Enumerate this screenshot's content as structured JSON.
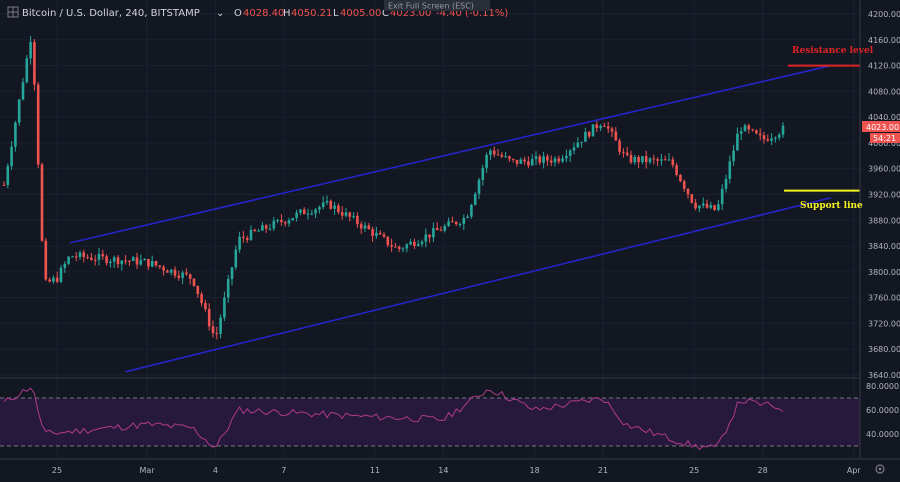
{
  "header": {
    "symbol": "Bitcoin / U.S. Dollar, 240, BITSTAMP",
    "open_label": "O",
    "open": "4028.40",
    "high_label": "H",
    "high": "4050.21",
    "low_label": "L",
    "low": "4005.00",
    "close_label": "C",
    "close": "4023.00",
    "change": "-4.40 (-0.11%)",
    "fullscreen_tooltip": "Exit Full Screen (ESC)"
  },
  "price_tags": {
    "last": "4023.00",
    "countdown": "54:21"
  },
  "annotations": {
    "resistance": "Resistance level",
    "support": "Support line"
  },
  "colors": {
    "background": "#131722",
    "up": "#26a69a",
    "down": "#ef5350",
    "channel": "#2424c8",
    "resistance": "#e02424",
    "support": "#f5f51e",
    "rsi_line": "#b03a8c",
    "rsi_band": "#3b1f4f",
    "grid": "#1f2433"
  },
  "chart_data": [
    {
      "type": "candlestick",
      "title": "Bitcoin / U.S. Dollar, 240, BITSTAMP",
      "ylim": [
        3640,
        4200
      ],
      "y_ticks": [
        "4200.00",
        "4160.00",
        "4120.00",
        "4080.00",
        "4040.00",
        "4000.00",
        "3960.00",
        "3920.00",
        "3880.00",
        "3840.00",
        "3800.00",
        "3760.00",
        "3720.00",
        "3680.00",
        "3640.00"
      ],
      "x_ticks": [
        "25",
        "Mar",
        "4",
        "7",
        "11",
        "14",
        "18",
        "21",
        "25",
        "28",
        "Apr"
      ],
      "ohlc_keypoints": [
        {
          "x": "22 Feb",
          "close": 3935
        },
        {
          "x": "23 Feb",
          "close": 4175
        },
        {
          "x": "24 Feb",
          "close": 3780
        },
        {
          "x": "25 Feb",
          "close": 3790
        },
        {
          "x": "26 Feb",
          "close": 3825
        },
        {
          "x": "1 Mar",
          "close": 3815
        },
        {
          "x": "3 Mar",
          "close": 3790
        },
        {
          "x": "4 Mar",
          "close": 3695
        },
        {
          "x": "5 Mar",
          "close": 3850
        },
        {
          "x": "8 Mar",
          "close": 3895
        },
        {
          "x": "9 Mar",
          "close": 3905
        },
        {
          "x": "12 Mar",
          "close": 3835
        },
        {
          "x": "15 Mar",
          "close": 3885
        },
        {
          "x": "16 Mar",
          "close": 3990
        },
        {
          "x": "17 Mar",
          "close": 3970
        },
        {
          "x": "19 Mar",
          "close": 3975
        },
        {
          "x": "21 Mar",
          "close": 4035
        },
        {
          "x": "22 Mar",
          "close": 3975
        },
        {
          "x": "24 Mar",
          "close": 3970
        },
        {
          "x": "25 Mar",
          "close": 3905
        },
        {
          "x": "26 Mar",
          "close": 3895
        },
        {
          "x": "27 Mar",
          "close": 4025
        },
        {
          "x": "28 Mar",
          "close": 4005
        },
        {
          "x": "29 Mar",
          "close": 4023
        }
      ],
      "channel": {
        "upper": {
          "start": {
            "x": "26 Feb",
            "y": 3845
          },
          "end": {
            "x": "31 Mar",
            "y": 4120
          }
        },
        "lower": {
          "start": {
            "x": "28 Feb",
            "y": 3645
          },
          "end": {
            "x": "31 Mar",
            "y": 3915
          }
        }
      },
      "resistance_level": 4120,
      "support_level": 3926
    },
    {
      "type": "line",
      "name": "RSI",
      "ylim": [
        20,
        85
      ],
      "y_ticks": [
        "80.0000",
        "60.0000",
        "40.0000"
      ],
      "bands": [
        30,
        70
      ],
      "keypoints": [
        {
          "x": "22 Feb",
          "y": 66
        },
        {
          "x": "23 Feb",
          "y": 80
        },
        {
          "x": "24 Feb",
          "y": 40
        },
        {
          "x": "1 Mar",
          "y": 48
        },
        {
          "x": "3 Mar",
          "y": 45
        },
        {
          "x": "4 Mar",
          "y": 28
        },
        {
          "x": "5 Mar",
          "y": 60
        },
        {
          "x": "10 Mar",
          "y": 55
        },
        {
          "x": "14 Mar",
          "y": 52
        },
        {
          "x": "16 Mar",
          "y": 78
        },
        {
          "x": "18 Mar",
          "y": 60
        },
        {
          "x": "21 Mar",
          "y": 70
        },
        {
          "x": "22 Mar",
          "y": 48
        },
        {
          "x": "25 Mar",
          "y": 30
        },
        {
          "x": "26 Mar",
          "y": 28
        },
        {
          "x": "27 Mar",
          "y": 68
        },
        {
          "x": "29 Mar",
          "y": 61
        }
      ]
    }
  ]
}
